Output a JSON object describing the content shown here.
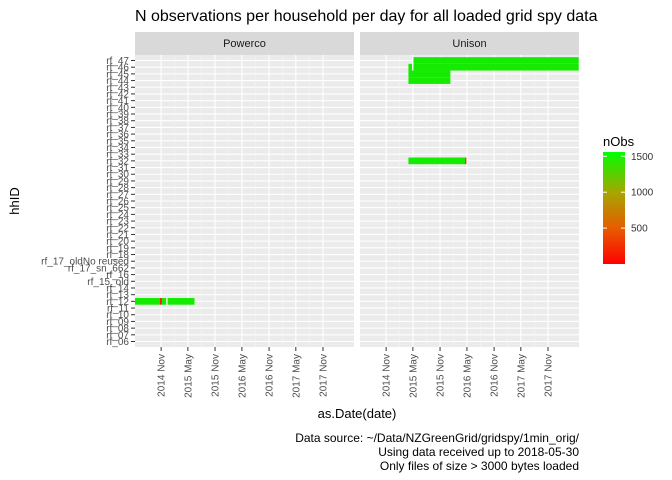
{
  "chart_data": {
    "type": "heatmap",
    "title": "N observations per household per day for all loaded grid spy data",
    "xlabel": "as.Date(date)",
    "ylabel": "hhID",
    "caption": [
      "Data source: ~/Data/NZGreenGrid/gridspy/1min_orig/",
      "Using data received up to 2018-05-30",
      "Only files of size > 3000 bytes loaded"
    ],
    "panels": [
      "Powerco",
      "Unison"
    ],
    "x_ticks": [
      "2014 Nov",
      "2015 May",
      "2015 Nov",
      "2016 May",
      "2016 Nov",
      "2017 May",
      "2017 Nov"
    ],
    "x_tick_dates": [
      "2014-11-01",
      "2015-05-01",
      "2015-11-01",
      "2016-05-01",
      "2016-11-01",
      "2017-05-01",
      "2017-11-01"
    ],
    "xlim": [
      "2014-05-08",
      "2018-05-30"
    ],
    "y_categories": [
      "rf_06",
      "rf_07",
      "rf_08",
      "rf_09",
      "rf_10",
      "rf_11",
      "rf_12",
      "rf_13",
      "rf_14",
      "rf_15_old",
      "rf_16",
      "rf_17_sn_662",
      "rf_17_oldNo reused",
      "rf_18",
      "rf_19",
      "rf_20",
      "rf_21",
      "rf_22",
      "rf_23",
      "rf_24",
      "rf_25",
      "rf_26",
      "rf_27",
      "rf_28",
      "rf_29",
      "rf_30",
      "rf_31",
      "rf_32",
      "rf_33",
      "rf_34",
      "rf_35",
      "rf_36",
      "rf_37",
      "rf_38",
      "rf_39",
      "rf_40",
      "rf_41",
      "rf_42",
      "rf_43",
      "rf_44",
      "rf_45",
      "rf_46",
      "rf_47"
    ],
    "legend": {
      "title": "nObs",
      "position": "right",
      "breaks": [
        500,
        1000,
        1500
      ],
      "limits": [
        0,
        1560
      ],
      "colors": [
        "#FF0000",
        "#00FF00"
      ]
    },
    "series": [
      {
        "panel": "Powerco",
        "hhID": "rf_12",
        "start": "2014-05-08",
        "end": "2014-10-25",
        "nObs": 1440
      },
      {
        "panel": "Powerco",
        "hhID": "rf_12",
        "start": "2014-10-25",
        "end": "2014-11-06",
        "nObs": 20
      },
      {
        "panel": "Powerco",
        "hhID": "rf_12",
        "start": "2014-11-06",
        "end": "2014-12-05",
        "nObs": 1440
      },
      {
        "panel": "Powerco",
        "hhID": "rf_12",
        "start": "2014-12-15",
        "end": "2015-06-15",
        "nObs": 1440
      },
      {
        "panel": "Unison",
        "hhID": "rf_32",
        "start": "2015-04-01",
        "end": "2016-04-20",
        "nObs": 1440
      },
      {
        "panel": "Unison",
        "hhID": "rf_32",
        "start": "2016-04-20",
        "end": "2016-04-27",
        "nObs": 40
      },
      {
        "panel": "Unison",
        "hhID": "rf_44",
        "start": "2015-04-01",
        "end": "2016-01-10",
        "nObs": 1440
      },
      {
        "panel": "Unison",
        "hhID": "rf_45",
        "start": "2015-04-01",
        "end": "2016-01-10",
        "nObs": 1440
      },
      {
        "panel": "Unison",
        "hhID": "rf_46",
        "start": "2015-04-01",
        "end": "2015-04-25",
        "nObs": 1440
      },
      {
        "panel": "Unison",
        "hhID": "rf_46",
        "start": "2015-05-05",
        "end": "2018-05-28",
        "nObs": 1440
      },
      {
        "panel": "Unison",
        "hhID": "rf_47",
        "start": "2015-05-05",
        "end": "2018-05-28",
        "nObs": 1440
      }
    ]
  }
}
